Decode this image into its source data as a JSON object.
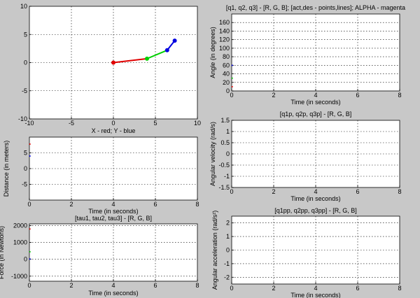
{
  "figure": {
    "background_color": "#c8c8c8",
    "axes_color": "#ffffff",
    "grid": "dotted"
  },
  "chart_data": [
    {
      "id": "arm",
      "type": "line",
      "title": "",
      "xlabel": "X - red; Y - blue",
      "ylabel": "",
      "xlim": [
        -10,
        10
      ],
      "ylim": [
        -10,
        10
      ],
      "xticks": [
        "-10",
        "-5",
        "0",
        "5",
        "10"
      ],
      "yticks": [
        "-10",
        "-5",
        "0",
        "5",
        "10"
      ],
      "grid": true,
      "segments": [
        {
          "name": "link1",
          "color": "#e00000",
          "x": [
            0,
            4.0
          ],
          "y": [
            0,
            0.7
          ]
        },
        {
          "name": "link2",
          "color": "#00d000",
          "x": [
            4.0,
            6.4
          ],
          "y": [
            0.7,
            2.2
          ]
        },
        {
          "name": "link3",
          "color": "#0000e0",
          "x": [
            6.4,
            7.3
          ],
          "y": [
            2.2,
            3.9
          ]
        }
      ],
      "joints": [
        {
          "x": 0,
          "y": 0,
          "color": "#e00000"
        },
        {
          "x": 4.0,
          "y": 0.7,
          "color": "#00d000"
        },
        {
          "x": 6.4,
          "y": 2.2,
          "color": "#0000e0"
        },
        {
          "x": 7.3,
          "y": 3.9,
          "color": "#0000e0"
        }
      ]
    },
    {
      "id": "distance",
      "type": "scatter",
      "title": "",
      "xlabel": "Time (in seconds)",
      "ylabel": "Distance (in meters)",
      "xlim": [
        0,
        8
      ],
      "ylim": [
        -10,
        10
      ],
      "xticks": [
        "0",
        "2",
        "4",
        "6",
        "8"
      ],
      "yticks": [
        "-5",
        "0",
        "5"
      ],
      "grid": true,
      "series": [
        {
          "color": "#e00000",
          "x": [
            0.02
          ],
          "y": [
            7.8
          ]
        },
        {
          "color": "#0000e0",
          "x": [
            0.02
          ],
          "y": [
            4.0
          ]
        }
      ]
    },
    {
      "id": "torque",
      "type": "scatter",
      "title": "[tau1, tau2, tau3] - [R, G, B]",
      "xlabel": "Time (in seconds)",
      "ylabel": "Force (in Newtons)",
      "xlim": [
        0,
        8
      ],
      "ylim": [
        -1300,
        2100
      ],
      "xticks": [
        "0",
        "2",
        "4",
        "6",
        "8"
      ],
      "yticks": [
        "-1000",
        "0",
        "1000",
        "2000"
      ],
      "grid": true,
      "series": [
        {
          "color": "#e00000",
          "x": [
            0.02
          ],
          "y": [
            1800
          ]
        },
        {
          "color": "#00c000",
          "x": [
            0.02
          ],
          "y": [
            450
          ]
        },
        {
          "color": "#0000e0",
          "x": [
            0.02
          ],
          "y": [
            20
          ]
        }
      ]
    },
    {
      "id": "angles",
      "type": "scatter",
      "title": "[q1, q2, q3] - [R, G, B]; [act,des - points,lines]; ALPHA - magenta",
      "xlabel": "Time (in seconds)",
      "ylabel": "Angle (in degrees)",
      "xlim": [
        0,
        8
      ],
      "ylim": [
        0,
        180
      ],
      "xticks": [
        "0",
        "2",
        "4",
        "6",
        "8"
      ],
      "yticks": [
        "0",
        "20",
        "40",
        "60",
        "80",
        "100",
        "120",
        "140",
        "160"
      ],
      "grid": true,
      "series": [
        {
          "color": "#e00000",
          "x": [
            0.02
          ],
          "y": [
            10
          ]
        },
        {
          "color": "#00c000",
          "x": [
            0.02
          ],
          "y": [
            30
          ]
        },
        {
          "color": "#0000e0",
          "x": [
            0.02
          ],
          "y": [
            60
          ]
        }
      ]
    },
    {
      "id": "velocity",
      "type": "scatter",
      "title": "[q1p, q2p, q3p] - [R, G, B]",
      "xlabel": "Time (in seconds)",
      "ylabel": "Angular velocity (rad/s)",
      "xlim": [
        0,
        8
      ],
      "ylim": [
        -1.5,
        1.5
      ],
      "xticks": [
        "0",
        "2",
        "4",
        "6",
        "8"
      ],
      "yticks": [
        "-1.5",
        "-1",
        "-0.5",
        "0",
        "0.5",
        "1",
        "1.5"
      ],
      "grid": true,
      "series": []
    },
    {
      "id": "acceleration",
      "type": "scatter",
      "title": "[q1pp, q2pp, q3pp] - [R, G, B]",
      "xlabel": "Time (in seconds)",
      "ylabel": "Angular acceleration (rad/s²)",
      "xlim": [
        0,
        8
      ],
      "ylim": [
        -2.5,
        2.5
      ],
      "xticks": [
        "0",
        "2",
        "4",
        "6",
        "8"
      ],
      "yticks": [
        "-2",
        "-1",
        "0",
        "1",
        "2"
      ],
      "grid": true,
      "series": []
    }
  ]
}
